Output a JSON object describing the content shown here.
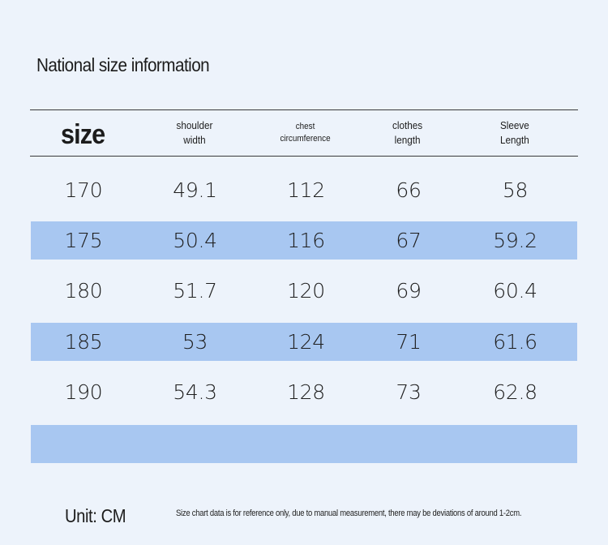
{
  "title": "National size information",
  "header": {
    "size": "size",
    "shoulder_width": "shoulder\nwidth",
    "chest_circumference": "chest\ncircumference",
    "clothes_length": "clothes\nlength",
    "sleeve_length": "Sleeve\nLength"
  },
  "rows": [
    [
      "170",
      "49.1",
      "112",
      "66",
      "58"
    ],
    [
      "175",
      "50.4",
      "116",
      "67",
      "59.2"
    ],
    [
      "180",
      "51.7",
      "120",
      "69",
      "60.4"
    ],
    [
      "185",
      "53",
      "124",
      "71",
      "61.6"
    ],
    [
      "190",
      "54.3",
      "128",
      "73",
      "62.8"
    ]
  ],
  "colors": {
    "background": "#edf3fb",
    "row_highlight": "#a8c7f1"
  },
  "footer": {
    "unit": "Unit: CM",
    "note": "Size chart data is for reference only, due to manual measurement, there may be deviations of around 1-2cm."
  }
}
